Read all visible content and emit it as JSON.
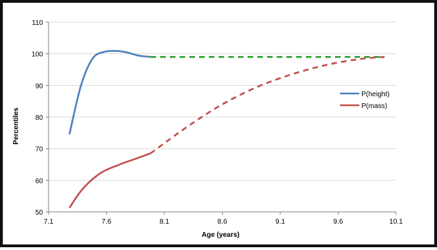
{
  "chart_data": {
    "type": "line",
    "xlabel": "Age (years)",
    "ylabel": "Percentiles",
    "xlim": [
      7.1,
      10.1
    ],
    "ylim": [
      50,
      110
    ],
    "x_ticks": [
      "7.1",
      "7.6",
      "8.1",
      "8.6",
      "9.1",
      "9.6",
      "10.1"
    ],
    "y_ticks": [
      "50",
      "60",
      "70",
      "80",
      "90",
      "100",
      "110"
    ],
    "grid": "horizontal",
    "legend_position": "right",
    "series": [
      {
        "name": "P(height)",
        "color": "#4f81bd",
        "style": "solid",
        "x": [
          7.28,
          7.38,
          7.48,
          7.58,
          7.68,
          7.78,
          7.88,
          7.98
        ],
        "y": [
          74.5,
          90,
          98.5,
          100.6,
          100.9,
          100.4,
          99.4,
          99
        ]
      },
      {
        "name": "",
        "color": "#2ca02c",
        "style": "dashed",
        "x": [
          7.98,
          8.5,
          9.0,
          9.5,
          10.0
        ],
        "y": [
          99,
          99,
          99,
          99,
          99
        ]
      },
      {
        "name": "P(mass)",
        "color": "#c0504d",
        "style": "solid",
        "x": [
          7.28,
          7.4,
          7.55,
          7.7,
          7.85,
          7.98
        ],
        "y": [
          51.3,
          57.5,
          62.3,
          64.8,
          66.8,
          68.5
        ]
      },
      {
        "name": "",
        "color": "#c0504d",
        "style": "dashed",
        "x": [
          7.98,
          8.3,
          8.6,
          8.9,
          9.2,
          9.5,
          9.8,
          10.0
        ],
        "y": [
          68.5,
          77,
          84,
          89.5,
          93.5,
          96.5,
          98.4,
          99
        ]
      }
    ]
  }
}
